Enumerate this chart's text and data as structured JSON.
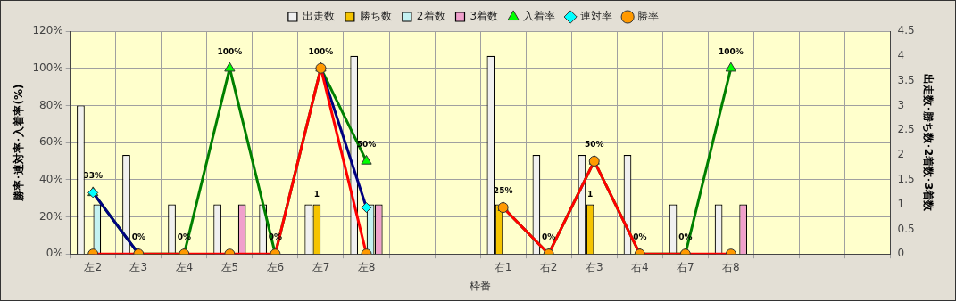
{
  "chart_data": {
    "type": "bar",
    "xlabel": "枠番",
    "ylabel": "勝率･連対率･入着率(%)",
    "y2label": "出走数･勝ち数･2着数･3着数",
    "categories": [
      "左2",
      "左3",
      "左4",
      "左5",
      "左6",
      "左7",
      "左8",
      null,
      null,
      "右1",
      "右2",
      "右3",
      "右4",
      "右7",
      "右8",
      null,
      null,
      null
    ],
    "series": [
      {
        "name": "出走数",
        "axis": "y2",
        "color": "#f0f0f0",
        "values": [
          3,
          2,
          1,
          1,
          1,
          1,
          4,
          null,
          null,
          4,
          2,
          2,
          2,
          1,
          1,
          null,
          null,
          null
        ]
      },
      {
        "name": "勝ち数",
        "axis": "y2",
        "color": "#f5c400",
        "values": [
          0,
          0,
          0,
          0,
          0,
          1,
          0,
          null,
          null,
          1,
          0,
          1,
          0,
          0,
          0,
          null,
          null,
          null
        ],
        "value_labels": [
          null,
          null,
          null,
          null,
          null,
          "1",
          null,
          null,
          null,
          null,
          null,
          "1",
          null,
          null,
          null,
          null,
          null,
          null
        ]
      },
      {
        "name": "2着数",
        "axis": "y2",
        "color": "#c4f2f2",
        "values": [
          1,
          0,
          0,
          0,
          0,
          0,
          1,
          null,
          null,
          0,
          0,
          0,
          0,
          0,
          0,
          null,
          null,
          null
        ]
      },
      {
        "name": "3着数",
        "axis": "y2",
        "color": "#f0a0cc",
        "values": [
          0,
          0,
          0,
          1,
          0,
          0,
          1,
          null,
          null,
          0,
          0,
          0,
          0,
          0,
          1,
          null,
          null,
          null
        ]
      },
      {
        "name": "入着率",
        "type": "line",
        "marker": "triangle",
        "color": "#008000",
        "values": [
          33,
          0,
          0,
          100,
          0,
          100,
          50,
          null,
          null,
          25,
          0,
          50,
          0,
          0,
          100,
          null,
          null,
          null
        ],
        "value_labels": [
          "33%",
          "0%",
          "0%",
          "100%",
          "0%",
          "100%",
          "50%",
          null,
          null,
          "25%",
          "0%",
          "50%",
          "0%",
          "0%",
          "100%",
          null,
          null,
          null
        ]
      },
      {
        "name": "連対率",
        "type": "line",
        "marker": "diamond",
        "color": "#000080",
        "values": [
          33,
          0,
          null,
          null,
          null,
          100,
          25,
          null,
          null,
          null,
          null,
          null,
          null,
          null,
          null,
          null,
          null,
          null
        ]
      },
      {
        "name": "勝率",
        "type": "line",
        "marker": "circle",
        "color": "#ff0000",
        "values": [
          0,
          0,
          0,
          0,
          0,
          100,
          0,
          null,
          null,
          25,
          0,
          50,
          0,
          0,
          0,
          null,
          null,
          null
        ]
      }
    ],
    "ylim": [
      0,
      120
    ],
    "yticks": [
      {
        "value": 0,
        "label": "0%"
      },
      {
        "value": 20,
        "label": "20%"
      },
      {
        "value": 40,
        "label": "40%"
      },
      {
        "value": 60,
        "label": "60%"
      },
      {
        "value": 80,
        "label": "80%"
      },
      {
        "value": 100,
        "label": "100%"
      },
      {
        "value": 120,
        "label": "120%"
      }
    ],
    "y2lim": [
      0,
      4.5
    ],
    "y2ticks": [
      0,
      0.5,
      1,
      1.5,
      2,
      2.5,
      3,
      3.5,
      4,
      4.5
    ],
    "grid": true,
    "legend": "top",
    "line_style": "solid"
  }
}
